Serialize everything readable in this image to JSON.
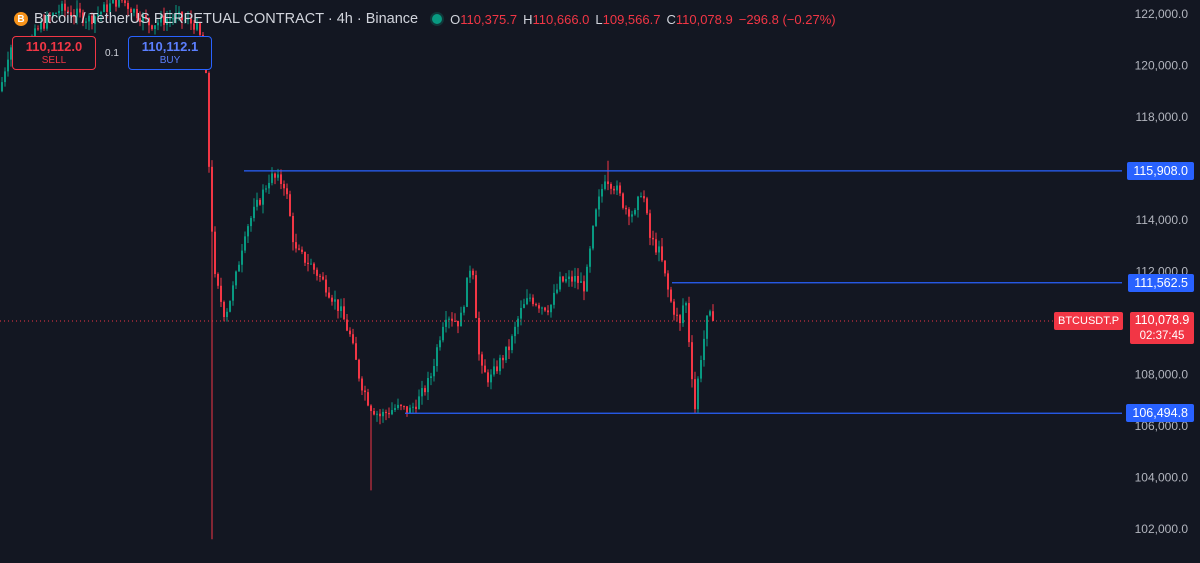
{
  "header": {
    "coin_icon": "B",
    "symbol": "Bitcoin / TetherUS PERPETUAL CONTRACT · 4h · Binance",
    "status_color": "#089981",
    "ohlc": {
      "o_label": "O",
      "o": "110,375.7",
      "h_label": "H",
      "h": "110,666.0",
      "l_label": "L",
      "l": "109,566.7",
      "c_label": "C",
      "c": "110,078.9",
      "change": "−296.8 (−0.27%)"
    }
  },
  "trade": {
    "sell_price": "110,112.0",
    "sell_label": "SELL",
    "quantity": "0.1",
    "buy_price": "110,112.1",
    "buy_label": "BUY"
  },
  "colors": {
    "background": "#131722",
    "up": "#089981",
    "down": "#f23645",
    "level_line": "#2962ff"
  },
  "axis": {
    "labels": [
      "122,000.0",
      "120,000.0",
      "118,000.0",
      "116,000.0",
      "114,000.0",
      "112,000.0",
      "110,000.0",
      "108,000.0",
      "106,000.0",
      "104,000.0",
      "102,000.0"
    ]
  },
  "levels": [
    {
      "value": 115908.0,
      "label": "115,908.0"
    },
    {
      "value": 111562.5,
      "label": "111,562.5"
    },
    {
      "value": 106494.8,
      "label": "106,494.8"
    }
  ],
  "last_price": {
    "ticker": "BTCUSDT.P",
    "value": 110078.9,
    "label": "110,078.9",
    "countdown": "02:37:45"
  },
  "chart_data": {
    "type": "candlestick",
    "series_name": "",
    "y_range": [
      101000,
      122700
    ],
    "trend": [
      [
        0,
        119000
      ],
      [
        10,
        120800
      ],
      [
        20,
        120300
      ],
      [
        40,
        121500
      ],
      [
        60,
        122200
      ],
      [
        90,
        121800
      ],
      [
        120,
        122600
      ],
      [
        150,
        121600
      ],
      [
        175,
        121900
      ],
      [
        195,
        121600
      ],
      [
        205,
        120600
      ],
      [
        210,
        115000
      ],
      [
        215,
        111700
      ],
      [
        225,
        110300
      ],
      [
        235,
        111600
      ],
      [
        245,
        113600
      ],
      [
        260,
        114800
      ],
      [
        270,
        115700
      ],
      [
        285,
        115400
      ],
      [
        295,
        112800
      ],
      [
        310,
        112300
      ],
      [
        325,
        111500
      ],
      [
        340,
        110500
      ],
      [
        350,
        109500
      ],
      [
        360,
        107800
      ],
      [
        370,
        106800
      ],
      [
        380,
        106400
      ],
      [
        395,
        106700
      ],
      [
        410,
        106600
      ],
      [
        420,
        107100
      ],
      [
        430,
        107800
      ],
      [
        445,
        110400
      ],
      [
        460,
        110000
      ],
      [
        472,
        112600
      ],
      [
        480,
        108200
      ],
      [
        490,
        107800
      ],
      [
        500,
        108500
      ],
      [
        510,
        109100
      ],
      [
        520,
        110400
      ],
      [
        530,
        111000
      ],
      [
        540,
        110700
      ],
      [
        550,
        110600
      ],
      [
        560,
        111600
      ],
      [
        575,
        111700
      ],
      [
        585,
        111400
      ],
      [
        595,
        114100
      ],
      [
        605,
        115700
      ],
      [
        615,
        115300
      ],
      [
        625,
        114500
      ],
      [
        635,
        114200
      ],
      [
        642,
        115300
      ],
      [
        650,
        113300
      ],
      [
        660,
        112700
      ],
      [
        670,
        110900
      ],
      [
        680,
        109900
      ],
      [
        685,
        111200
      ],
      [
        690,
        108900
      ],
      [
        695,
        106700
      ],
      [
        700,
        108500
      ],
      [
        708,
        110300
      ],
      [
        713,
        110100
      ]
    ]
  }
}
